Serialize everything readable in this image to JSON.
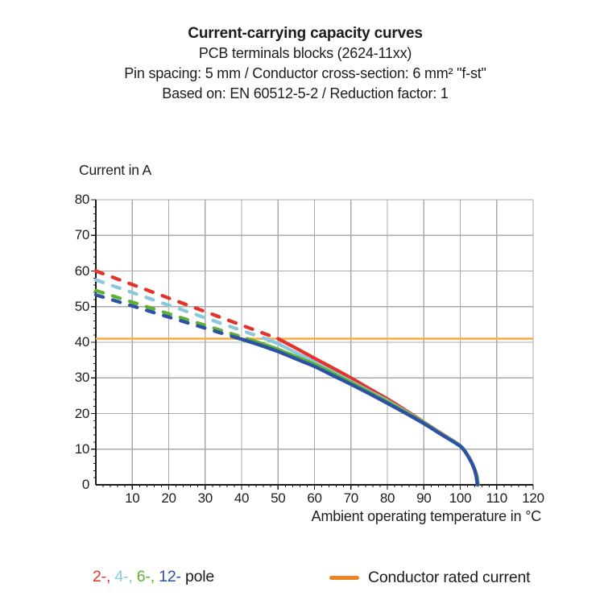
{
  "header": {
    "title": "Current-carrying capacity curves",
    "subtitle1": "PCB terminals blocks (2624-11xx)",
    "subtitle2": "Pin spacing: 5 mm / Conductor cross-section: 6 mm² \"f-st\"",
    "subtitle3": "Based on: EN 60512-5-2 / Reduction factor: 1"
  },
  "chart_data": {
    "type": "line",
    "title": "Current-carrying capacity curves",
    "y_axis_title": "Current in A",
    "xlabel": "Ambient operating temperature in °C",
    "xlim": [
      0,
      120
    ],
    "ylim": [
      0,
      80
    ],
    "x_ticks": [
      10,
      20,
      30,
      40,
      50,
      60,
      70,
      80,
      90,
      100,
      110,
      120
    ],
    "y_ticks": [
      0,
      10,
      20,
      30,
      40,
      50,
      60,
      70,
      80
    ],
    "minor_tick_step": 2,
    "grid": true,
    "grid_color": "#ababab",
    "axis_color": "#1a1a1a",
    "series": [
      {
        "name": "2-pole",
        "color": "#E5322A",
        "dashed": [
          [
            0,
            60
          ],
          [
            50,
            41
          ]
        ],
        "solid": [
          [
            50,
            41
          ],
          [
            55,
            38.3
          ],
          [
            60,
            35.5
          ],
          [
            65,
            32.8
          ],
          [
            70,
            30
          ],
          [
            75,
            27
          ],
          [
            80,
            24.1
          ],
          [
            85,
            20.9
          ],
          [
            90,
            17.6
          ],
          [
            95,
            14.3
          ],
          [
            100,
            11
          ],
          [
            102,
            8.4
          ],
          [
            103.5,
            5.6
          ],
          [
            104.4,
            3
          ],
          [
            104.8,
            0
          ]
        ]
      },
      {
        "name": "4-pole",
        "color": "#8AC8DC",
        "dashed": [
          [
            0,
            57.5
          ],
          [
            46.5,
            41
          ]
        ],
        "solid": [
          [
            46.5,
            41
          ],
          [
            50,
            39.6
          ],
          [
            55,
            37
          ],
          [
            60,
            34.4
          ],
          [
            65,
            31.7
          ],
          [
            70,
            29
          ],
          [
            75,
            26.3
          ],
          [
            80,
            23.6
          ],
          [
            85,
            20.6
          ],
          [
            90,
            17.5
          ],
          [
            95,
            14.2
          ],
          [
            100,
            11
          ],
          [
            102,
            8.4
          ],
          [
            103.5,
            5.5
          ],
          [
            104.4,
            2.9
          ],
          [
            104.8,
            0
          ]
        ]
      },
      {
        "name": "6-pole",
        "color": "#5CB130",
        "dashed": [
          [
            0,
            54.5
          ],
          [
            41.5,
            41
          ]
        ],
        "solid": [
          [
            41.5,
            41
          ],
          [
            45,
            39.8
          ],
          [
            50,
            38
          ],
          [
            55,
            35.9
          ],
          [
            60,
            33.8
          ],
          [
            65,
            31.3
          ],
          [
            70,
            28.7
          ],
          [
            75,
            26
          ],
          [
            80,
            23.3
          ],
          [
            85,
            20.4
          ],
          [
            90,
            17.4
          ],
          [
            95,
            14.1
          ],
          [
            100,
            10.9
          ],
          [
            102,
            8.3
          ],
          [
            103.5,
            5.4
          ],
          [
            104.5,
            2.7
          ],
          [
            104.9,
            0
          ]
        ]
      },
      {
        "name": "12-pole",
        "color": "#2C51A5",
        "dashed": [
          [
            0,
            53.3
          ],
          [
            39.5,
            41
          ]
        ],
        "solid": [
          [
            39.5,
            41
          ],
          [
            45,
            39.2
          ],
          [
            50,
            37.4
          ],
          [
            55,
            35.3
          ],
          [
            60,
            33.2
          ],
          [
            65,
            30.7
          ],
          [
            70,
            28.2
          ],
          [
            75,
            25.6
          ],
          [
            80,
            22.9
          ],
          [
            85,
            20.1
          ],
          [
            90,
            17.2
          ],
          [
            95,
            14
          ],
          [
            100,
            10.8
          ],
          [
            102,
            8.2
          ],
          [
            103.5,
            5.3
          ],
          [
            104.3,
            2.8
          ],
          [
            104.7,
            0
          ]
        ]
      }
    ],
    "rated_line": {
      "name": "Conductor rated current",
      "value": 41,
      "color": "#F9AE4B"
    }
  },
  "legend": {
    "pole_segments": [
      {
        "text": "2-",
        "color": "#E5322A"
      },
      {
        "text": ", ",
        "color": "#E5322A"
      },
      {
        "text": "4-",
        "color": "#8AC8DC"
      },
      {
        "text": ", ",
        "color": "#8AC8DC"
      },
      {
        "text": "6-",
        "color": "#5CB130"
      },
      {
        "text": ", ",
        "color": "#5CB130"
      },
      {
        "text": "12-",
        "color": "#2C51A5"
      },
      {
        "text": " pole",
        "color": "#1c1c1c"
      }
    ],
    "rated_label": "Conductor rated current",
    "rated_color": "#EF8222"
  }
}
